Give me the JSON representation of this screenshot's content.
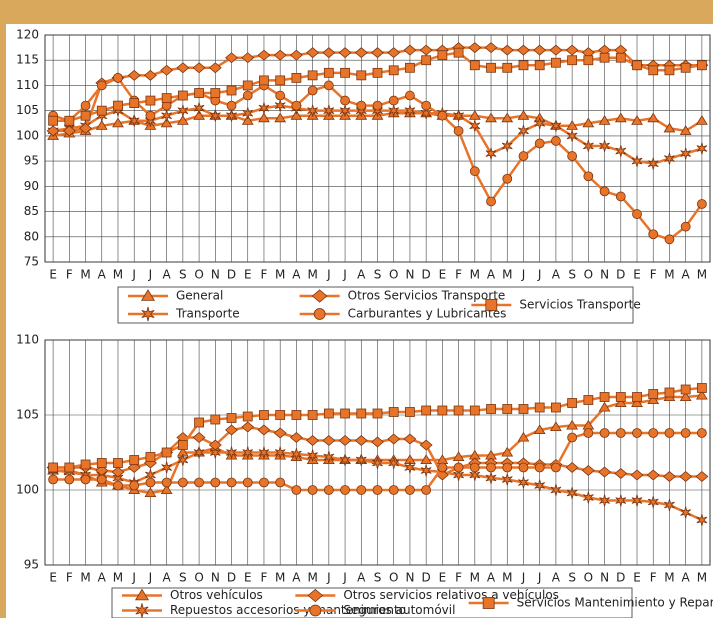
{
  "chart_data": [
    {
      "type": "line",
      "categories": [
        "E",
        "F",
        "M",
        "A",
        "M",
        "J",
        "J",
        "A",
        "S",
        "O",
        "N",
        "D",
        "E",
        "F",
        "M",
        "A",
        "M",
        "J",
        "J",
        "A",
        "S",
        "O",
        "N",
        "D",
        "E",
        "F",
        "M",
        "A",
        "M",
        "J",
        "J",
        "A",
        "S",
        "O",
        "N",
        "D",
        "E",
        "F",
        "M",
        "A",
        "M"
      ],
      "ylim": [
        75,
        120
      ],
      "yticks": [
        75,
        80,
        85,
        90,
        95,
        100,
        105,
        110,
        115,
        120
      ],
      "grid": true,
      "series": [
        {
          "name": "General",
          "marker": "triangle",
          "color": "#e8742a",
          "values": [
            100,
            100.5,
            101,
            102,
            102.5,
            103,
            102,
            102.5,
            103,
            104,
            104,
            104,
            103,
            103.5,
            103.5,
            104,
            104,
            104,
            104,
            104,
            104,
            104.5,
            104.5,
            104.5,
            104,
            104,
            104,
            103.5,
            103.5,
            104,
            103.5,
            102,
            102,
            102.5,
            103,
            103.5,
            103,
            103.5,
            101.5,
            101,
            103
          ]
        },
        {
          "name": "Transporte",
          "marker": "star",
          "color": "#e8742a",
          "values": [
            101,
            101.5,
            102,
            104,
            105,
            103,
            103,
            104,
            105,
            105.5,
            104,
            104,
            104.5,
            105.5,
            106,
            105.5,
            105,
            105,
            105,
            105,
            105,
            105,
            105,
            104.5,
            104.5,
            104,
            102,
            96.5,
            98,
            101,
            102.5,
            102,
            100,
            98,
            98,
            97,
            95,
            94.5,
            95.5,
            96.5,
            97.5
          ]
        },
        {
          "name": "Otros Servicios Transporte",
          "marker": "diamond",
          "color": "#e8742a",
          "values": [
            101,
            101,
            101.5,
            110.5,
            111.5,
            112,
            112,
            113,
            113.5,
            113.5,
            113.5,
            115.5,
            115.5,
            116,
            116,
            116,
            116.5,
            116.5,
            116.5,
            116.5,
            116.5,
            116.5,
            117,
            117,
            117,
            117.5,
            117.5,
            117.5,
            117,
            117,
            117,
            117,
            117,
            116.5,
            117,
            117,
            114,
            114,
            114,
            114,
            114
          ]
        },
        {
          "name": "Carburantes y Lubricantes",
          "marker": "circle",
          "color": "#e8742a",
          "values": [
            104,
            103,
            106,
            110,
            111.5,
            107,
            104,
            106,
            108,
            108.5,
            107,
            106,
            108,
            110,
            108,
            106,
            109,
            110,
            107,
            106,
            106,
            107,
            108,
            106,
            104,
            101,
            93,
            87,
            91.5,
            96,
            98.5,
            99,
            96,
            92,
            89,
            88,
            84.5,
            80.5,
            79.5,
            82,
            86.5
          ]
        },
        {
          "name": "Servicios Transporte",
          "marker": "square",
          "color": "#e8742a",
          "values": [
            103,
            103,
            104,
            105,
            106,
            106.5,
            107,
            107.5,
            108,
            108.5,
            108.5,
            109,
            110,
            111,
            111,
            111.5,
            112,
            112.5,
            112.5,
            112,
            112.5,
            113,
            113.5,
            115,
            116,
            116.5,
            114,
            113.5,
            113.5,
            114,
            114,
            114.5,
            115,
            115,
            115.5,
            115.5,
            114,
            113,
            113,
            113.5,
            114
          ]
        }
      ]
    },
    {
      "type": "line",
      "categories": [
        "E",
        "F",
        "M",
        "A",
        "M",
        "J",
        "J",
        "A",
        "S",
        "O",
        "N",
        "D",
        "E",
        "F",
        "M",
        "A",
        "M",
        "J",
        "J",
        "A",
        "S",
        "O",
        "N",
        "D",
        "E",
        "F",
        "M",
        "A",
        "M",
        "J",
        "J",
        "A",
        "S",
        "O",
        "N",
        "D",
        "E",
        "F",
        "M",
        "A",
        "M"
      ],
      "ylim": [
        95,
        110
      ],
      "yticks": [
        95,
        100,
        105,
        110
      ],
      "grid": true,
      "series": [
        {
          "name": "Otros vehículos",
          "marker": "triangle",
          "color": "#e8742a",
          "values": [
            101.3,
            101.3,
            101,
            100.5,
            100.3,
            100,
            99.8,
            100,
            102.5,
            102.5,
            102.8,
            102.3,
            102.3,
            102.3,
            102.3,
            102.2,
            102,
            102,
            102,
            102,
            102,
            102,
            102,
            102,
            102,
            102.2,
            102.3,
            102.3,
            102.5,
            103.5,
            104,
            104.2,
            104.3,
            104.3,
            105.5,
            105.8,
            105.8,
            106,
            106.2,
            106.2,
            106.3
          ]
        },
        {
          "name": "Repuestos accesorios y mantenimiento",
          "marker": "star",
          "color": "#e8742a",
          "values": [
            101.3,
            101.2,
            101,
            101,
            100.8,
            100.5,
            101,
            101.5,
            102,
            102.5,
            102.5,
            102.5,
            102.5,
            102.5,
            102.5,
            102.4,
            102.3,
            102.2,
            102,
            102,
            101.8,
            101.8,
            101.5,
            101.3,
            101.2,
            101,
            101,
            100.8,
            100.7,
            100.5,
            100.3,
            100,
            99.8,
            99.5,
            99.3,
            99.3,
            99.3,
            99.2,
            99,
            98.5,
            98
          ]
        },
        {
          "name": "Otros servicios relativos a vehículos",
          "marker": "diamond",
          "color": "#e8742a",
          "values": [
            101.5,
            101.5,
            101.5,
            101.3,
            101.2,
            101.5,
            101.8,
            102.5,
            103.5,
            103.5,
            103,
            104,
            104.2,
            104,
            103.8,
            103.5,
            103.3,
            103.3,
            103.3,
            103.3,
            103.2,
            103.4,
            103.4,
            103,
            101,
            101.5,
            101.8,
            101.8,
            101.8,
            101.8,
            101.7,
            101.7,
            101.5,
            101.3,
            101.2,
            101.1,
            101,
            101,
            100.9,
            100.9,
            100.9
          ]
        },
        {
          "name": "Seguros automóvil",
          "marker": "circle",
          "color": "#e8742a",
          "values": [
            100.7,
            100.7,
            100.7,
            100.7,
            100.3,
            100.3,
            100.5,
            100.5,
            100.5,
            100.5,
            100.5,
            100.5,
            100.5,
            100.5,
            100.5,
            100,
            100,
            100,
            100,
            100,
            100,
            100,
            100,
            100,
            101.5,
            101.5,
            101.5,
            101.5,
            101.5,
            101.5,
            101.5,
            101.5,
            103.5,
            103.8,
            103.8,
            103.8,
            103.8,
            103.8,
            103.8,
            103.8,
            103.8
          ]
        },
        {
          "name": "Servicios Mantenimiento y Reparación",
          "marker": "square",
          "color": "#e8742a",
          "values": [
            101.5,
            101.5,
            101.7,
            101.8,
            101.8,
            102,
            102.2,
            102.5,
            103,
            104.5,
            104.7,
            104.8,
            104.9,
            105,
            105,
            105,
            105,
            105.1,
            105.1,
            105.1,
            105.1,
            105.2,
            105.2,
            105.3,
            105.3,
            105.3,
            105.3,
            105.4,
            105.4,
            105.4,
            105.5,
            105.5,
            105.8,
            106,
            106.2,
            106.2,
            106.2,
            106.4,
            106.5,
            106.7,
            106.8
          ]
        }
      ]
    }
  ]
}
